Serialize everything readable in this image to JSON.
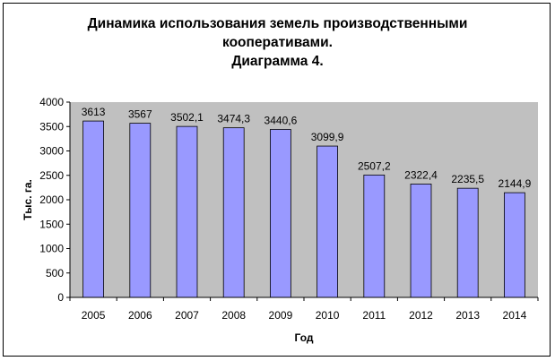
{
  "chart_data": {
    "type": "bar",
    "title_lines": [
      "Динамика использования земель производственными",
      "кооперативами.",
      "Диаграмма 4."
    ],
    "xlabel": "Год",
    "ylabel": "Тыс. га.",
    "categories": [
      "2005",
      "2006",
      "2007",
      "2008",
      "2009",
      "2010",
      "2011",
      "2012",
      "2013",
      "2014"
    ],
    "values": [
      3613,
      3567,
      3502.1,
      3474.3,
      3440.6,
      3099.9,
      2507.2,
      2322.4,
      2235.5,
      2144.9
    ],
    "data_labels": [
      "3613",
      "3567",
      "3502,1",
      "3474,3",
      "3440,6",
      "3099,9",
      "2507,2",
      "2322,4",
      "2235,5",
      "2144,9"
    ],
    "ylim": [
      0,
      4000
    ],
    "yticks": [
      0,
      500,
      1000,
      1500,
      2000,
      2500,
      3000,
      3500,
      4000
    ],
    "grid": false,
    "legend": "none",
    "colors": {
      "bar_fill": "#9999ff",
      "plot_background": "#c0c0c0",
      "axis": "#000000"
    }
  }
}
